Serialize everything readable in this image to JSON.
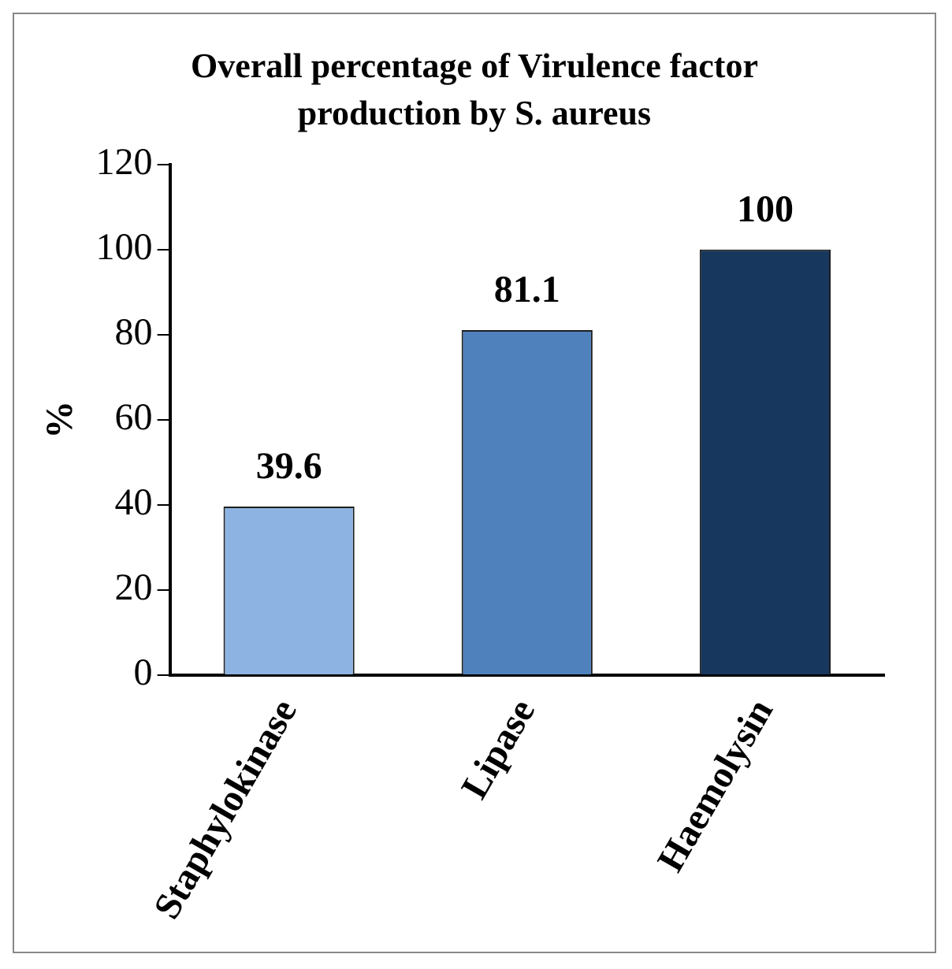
{
  "chart_data": {
    "type": "bar",
    "title": "Overall percentage of Virulence factor production by S. aureus",
    "ylabel": "%",
    "categories": [
      "Staphylokinase",
      "Lipase",
      "Haemolysin"
    ],
    "values": [
      39.6,
      81.1,
      100
    ],
    "colors": [
      "#8db3e2",
      "#4f81bd",
      "#17375e"
    ],
    "ylim": [
      0,
      120
    ],
    "yticks": [
      0,
      20,
      40,
      60,
      80,
      100,
      120
    ],
    "data_labels": true,
    "grid": false,
    "legend": false
  }
}
